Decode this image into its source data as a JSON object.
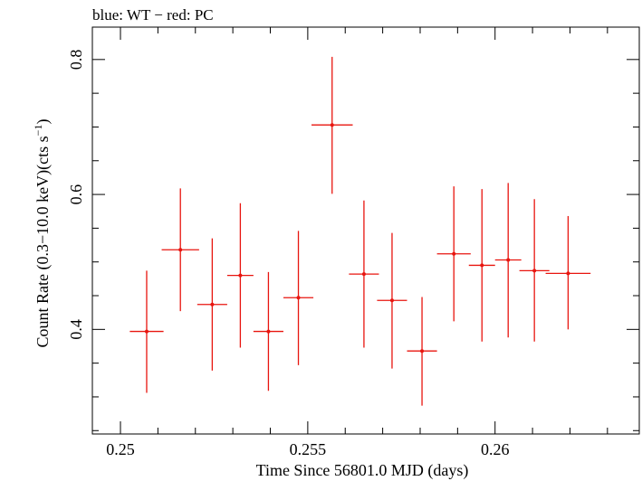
{
  "chart_data": {
    "type": "scatter",
    "title": "blue: WT − red: PC",
    "xlabel": "Time Since 56801.0 MJD (days)",
    "ylabel_main": "Count Rate (0.3−10.0 keV)(cts s",
    "ylabel_sup": "−1",
    "ylabel_close": ")",
    "xlim": [
      0.24925,
      0.26385
    ],
    "ylim": [
      0.245,
      0.848
    ],
    "xticks": [
      0.25,
      0.255,
      0.26
    ],
    "xtick_labels": [
      "0.25",
      "0.255",
      "0.26"
    ],
    "yticks": [
      0.4,
      0.6,
      0.8
    ],
    "ytick_labels": [
      "0.4",
      "0.6",
      "0.8"
    ],
    "grid": false,
    "colors": {
      "PC": "#e8150f",
      "axis": "#000000"
    },
    "series": [
      {
        "name": "PC",
        "points": [
          {
            "x": 0.2507,
            "y": 0.397,
            "xerr": 0.00045,
            "ylo": 0.306,
            "yhi": 0.487
          },
          {
            "x": 0.2516,
            "y": 0.518,
            "xerr": 0.0005,
            "ylo": 0.427,
            "yhi": 0.609
          },
          {
            "x": 0.25245,
            "y": 0.437,
            "xerr": 0.0004,
            "ylo": 0.339,
            "yhi": 0.535
          },
          {
            "x": 0.2532,
            "y": 0.48,
            "xerr": 0.00035,
            "ylo": 0.373,
            "yhi": 0.587
          },
          {
            "x": 0.25395,
            "y": 0.397,
            "xerr": 0.0004,
            "ylo": 0.309,
            "yhi": 0.485
          },
          {
            "x": 0.25475,
            "y": 0.447,
            "xerr": 0.0004,
            "ylo": 0.347,
            "yhi": 0.546
          },
          {
            "x": 0.25565,
            "y": 0.703,
            "xerr": 0.00055,
            "ylo": 0.601,
            "yhi": 0.804
          },
          {
            "x": 0.2565,
            "y": 0.482,
            "xerr": 0.0004,
            "ylo": 0.373,
            "yhi": 0.591
          },
          {
            "x": 0.25725,
            "y": 0.443,
            "xerr": 0.0004,
            "ylo": 0.342,
            "yhi": 0.543
          },
          {
            "x": 0.25805,
            "y": 0.368,
            "xerr": 0.0004,
            "ylo": 0.287,
            "yhi": 0.448
          },
          {
            "x": 0.2589,
            "y": 0.512,
            "xerr": 0.00045,
            "ylo": 0.412,
            "yhi": 0.612
          },
          {
            "x": 0.25965,
            "y": 0.495,
            "xerr": 0.00035,
            "ylo": 0.382,
            "yhi": 0.608
          },
          {
            "x": 0.26035,
            "y": 0.503,
            "xerr": 0.00035,
            "ylo": 0.388,
            "yhi": 0.617
          },
          {
            "x": 0.26105,
            "y": 0.487,
            "xerr": 0.0004,
            "ylo": 0.382,
            "yhi": 0.593
          },
          {
            "x": 0.26195,
            "y": 0.483,
            "xerr": 0.0006,
            "ylo": 0.4,
            "yhi": 0.568
          }
        ]
      }
    ]
  }
}
